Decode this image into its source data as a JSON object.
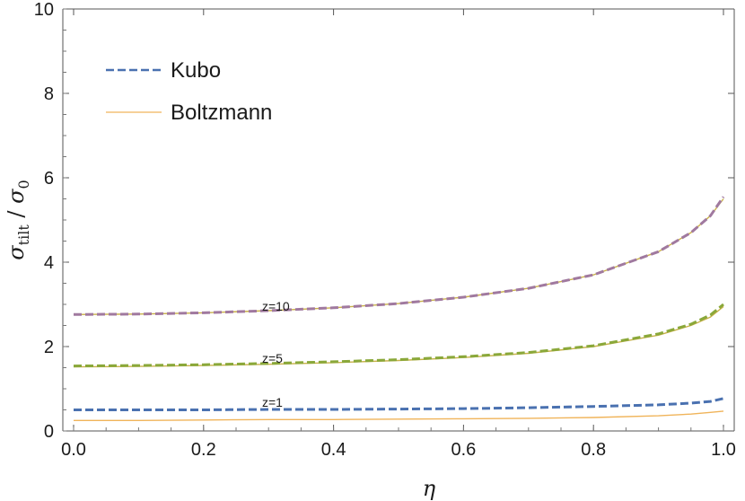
{
  "chart_data": {
    "type": "line",
    "xlabel": "η",
    "ylabel": "σtilt / σ0",
    "ylabel_parts": {
      "main": "σ",
      "sub": "tilt",
      "sep": " / ",
      "main2": "σ",
      "sub2": "0"
    },
    "xlim": [
      0,
      1.0
    ],
    "ylim": [
      0,
      10
    ],
    "xticks": [
      "0.0",
      "0.2",
      "0.4",
      "0.6",
      "0.8",
      "1.0"
    ],
    "yticks": [
      "0",
      "2",
      "4",
      "6",
      "8",
      "10"
    ],
    "grid": false,
    "legend_position": "top-left",
    "legend": [
      {
        "name": "Kubo",
        "color": "#4a71b0",
        "style": "dashed"
      },
      {
        "name": "Boltzmann",
        "color": "#f0b45a",
        "style": "solid"
      }
    ],
    "annotations": [
      {
        "text": "z=10",
        "x": 0.29,
        "y": 2.83
      },
      {
        "text": "z=5",
        "x": 0.29,
        "y": 1.6
      },
      {
        "text": "z=1",
        "x": 0.29,
        "y": 0.55
      }
    ],
    "series": [
      {
        "group": "z=10",
        "kind": "Boltzmann",
        "color": "#c9b14a",
        "style": "solid",
        "x": [
          0,
          0.1,
          0.2,
          0.3,
          0.4,
          0.5,
          0.6,
          0.7,
          0.8,
          0.9,
          0.95,
          0.98,
          1.0
        ],
        "y": [
          2.76,
          2.77,
          2.8,
          2.85,
          2.92,
          3.02,
          3.17,
          3.38,
          3.7,
          4.25,
          4.7,
          5.1,
          5.5
        ]
      },
      {
        "group": "z=10",
        "kind": "Kubo",
        "color": "#a0799f",
        "style": "dashed",
        "x": [
          0,
          0.1,
          0.2,
          0.3,
          0.4,
          0.5,
          0.6,
          0.7,
          0.8,
          0.9,
          0.95,
          0.98,
          1.0
        ],
        "y": [
          2.76,
          2.77,
          2.8,
          2.85,
          2.92,
          3.02,
          3.17,
          3.38,
          3.7,
          4.25,
          4.7,
          5.1,
          5.55
        ]
      },
      {
        "group": "z=5",
        "kind": "Boltzmann",
        "color": "#c9b14a",
        "style": "solid",
        "x": [
          0,
          0.1,
          0.2,
          0.3,
          0.4,
          0.5,
          0.6,
          0.7,
          0.8,
          0.9,
          0.95,
          0.98,
          1.0
        ],
        "y": [
          1.52,
          1.53,
          1.55,
          1.58,
          1.62,
          1.67,
          1.74,
          1.84,
          2.0,
          2.27,
          2.5,
          2.7,
          2.95
        ]
      },
      {
        "group": "z=5",
        "kind": "Kubo",
        "color": "#8aa83a",
        "style": "dashed",
        "x": [
          0,
          0.1,
          0.2,
          0.3,
          0.4,
          0.5,
          0.6,
          0.7,
          0.8,
          0.9,
          0.95,
          0.98,
          1.0
        ],
        "y": [
          1.54,
          1.55,
          1.57,
          1.6,
          1.64,
          1.69,
          1.76,
          1.86,
          2.02,
          2.3,
          2.53,
          2.75,
          3.0
        ]
      },
      {
        "group": "z=1",
        "kind": "Boltzmann",
        "color": "#f0b45a",
        "style": "solid",
        "x": [
          0,
          0.1,
          0.2,
          0.3,
          0.4,
          0.5,
          0.6,
          0.7,
          0.8,
          0.9,
          0.95,
          0.98,
          1.0
        ],
        "y": [
          0.25,
          0.25,
          0.26,
          0.27,
          0.27,
          0.28,
          0.29,
          0.3,
          0.32,
          0.36,
          0.4,
          0.44,
          0.47
        ]
      },
      {
        "group": "z=1",
        "kind": "Kubo",
        "color": "#4a71b0",
        "style": "dashed",
        "x": [
          0,
          0.1,
          0.2,
          0.3,
          0.4,
          0.5,
          0.6,
          0.7,
          0.8,
          0.9,
          0.95,
          0.98,
          1.0
        ],
        "y": [
          0.5,
          0.5,
          0.5,
          0.51,
          0.51,
          0.52,
          0.53,
          0.55,
          0.58,
          0.62,
          0.66,
          0.7,
          0.77
        ]
      }
    ]
  }
}
